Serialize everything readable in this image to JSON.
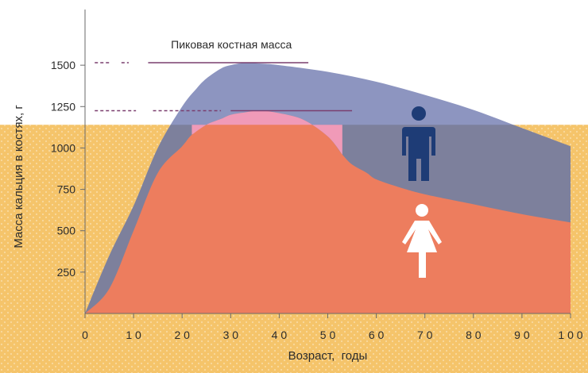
{
  "chart_data": {
    "type": "area",
    "title": "",
    "xlabel": "Возраст,  годы",
    "ylabel": "Масса кальция в костях, г",
    "xlim": [
      0,
      100
    ],
    "ylim": [
      0,
      1750
    ],
    "x_ticks": [
      0,
      10,
      20,
      30,
      40,
      50,
      60,
      70,
      80,
      90,
      100
    ],
    "x_tick_labels": [
      "0",
      "1 0",
      "2 0",
      "3 0",
      "4 0",
      "5 0",
      "6 0",
      "7 0",
      "8 0",
      "9 0",
      "1 0 0"
    ],
    "y_ticks": [
      250,
      500,
      750,
      1000,
      1250,
      1500
    ],
    "y_tick_labels": [
      "250",
      "500",
      "750",
      "1000",
      "1250",
      "1500"
    ],
    "grid": false,
    "annotation": "Пиковая костная масса",
    "background_band_top": 1140,
    "peak_lines": [
      {
        "value": 1515,
        "solid_x": [
          13,
          46
        ],
        "dashed_x": [
          [
            2,
            5
          ],
          [
            7.5,
            9
          ]
        ]
      },
      {
        "value": 1225,
        "solid_x": [
          30,
          55
        ],
        "dashed_x": [
          [
            2,
            10.5
          ],
          [
            14,
            28
          ]
        ]
      }
    ],
    "series": [
      {
        "x": [
          0,
          5,
          10,
          15,
          20,
          23,
          25,
          28,
          30,
          33,
          36,
          40,
          50,
          60,
          70,
          80,
          90,
          100
        ],
        "values": [
          0,
          350,
          650,
          1000,
          1250,
          1360,
          1420,
          1480,
          1500,
          1515,
          1510,
          1500,
          1460,
          1400,
          1320,
          1230,
          1120,
          1010
        ]
      },
      {
        "x": [
          0,
          5,
          10,
          15,
          20,
          22,
          25,
          28,
          30,
          33,
          36,
          40,
          45,
          50,
          53,
          55,
          58,
          60,
          65,
          70,
          80,
          90,
          100
        ],
        "values": [
          0,
          150,
          500,
          850,
          1010,
          1080,
          1140,
          1175,
          1200,
          1215,
          1225,
          1210,
          1170,
          1070,
          960,
          900,
          850,
          810,
          760,
          720,
          660,
          600,
          550
        ]
      }
    ],
    "colors": {
      "band": "#f5c46a",
      "upper_area": "#8d95c0",
      "upper_area_on_band": "#7d809c",
      "lower_area": "#ed7d5e",
      "lower_area_peak": "#f09ab8",
      "peak_line": "#7a3e6e",
      "male_icon": "#1e3c76",
      "female_icon": "#ffffff"
    },
    "icons": [
      "male-figure-icon",
      "female-figure-icon"
    ]
  }
}
